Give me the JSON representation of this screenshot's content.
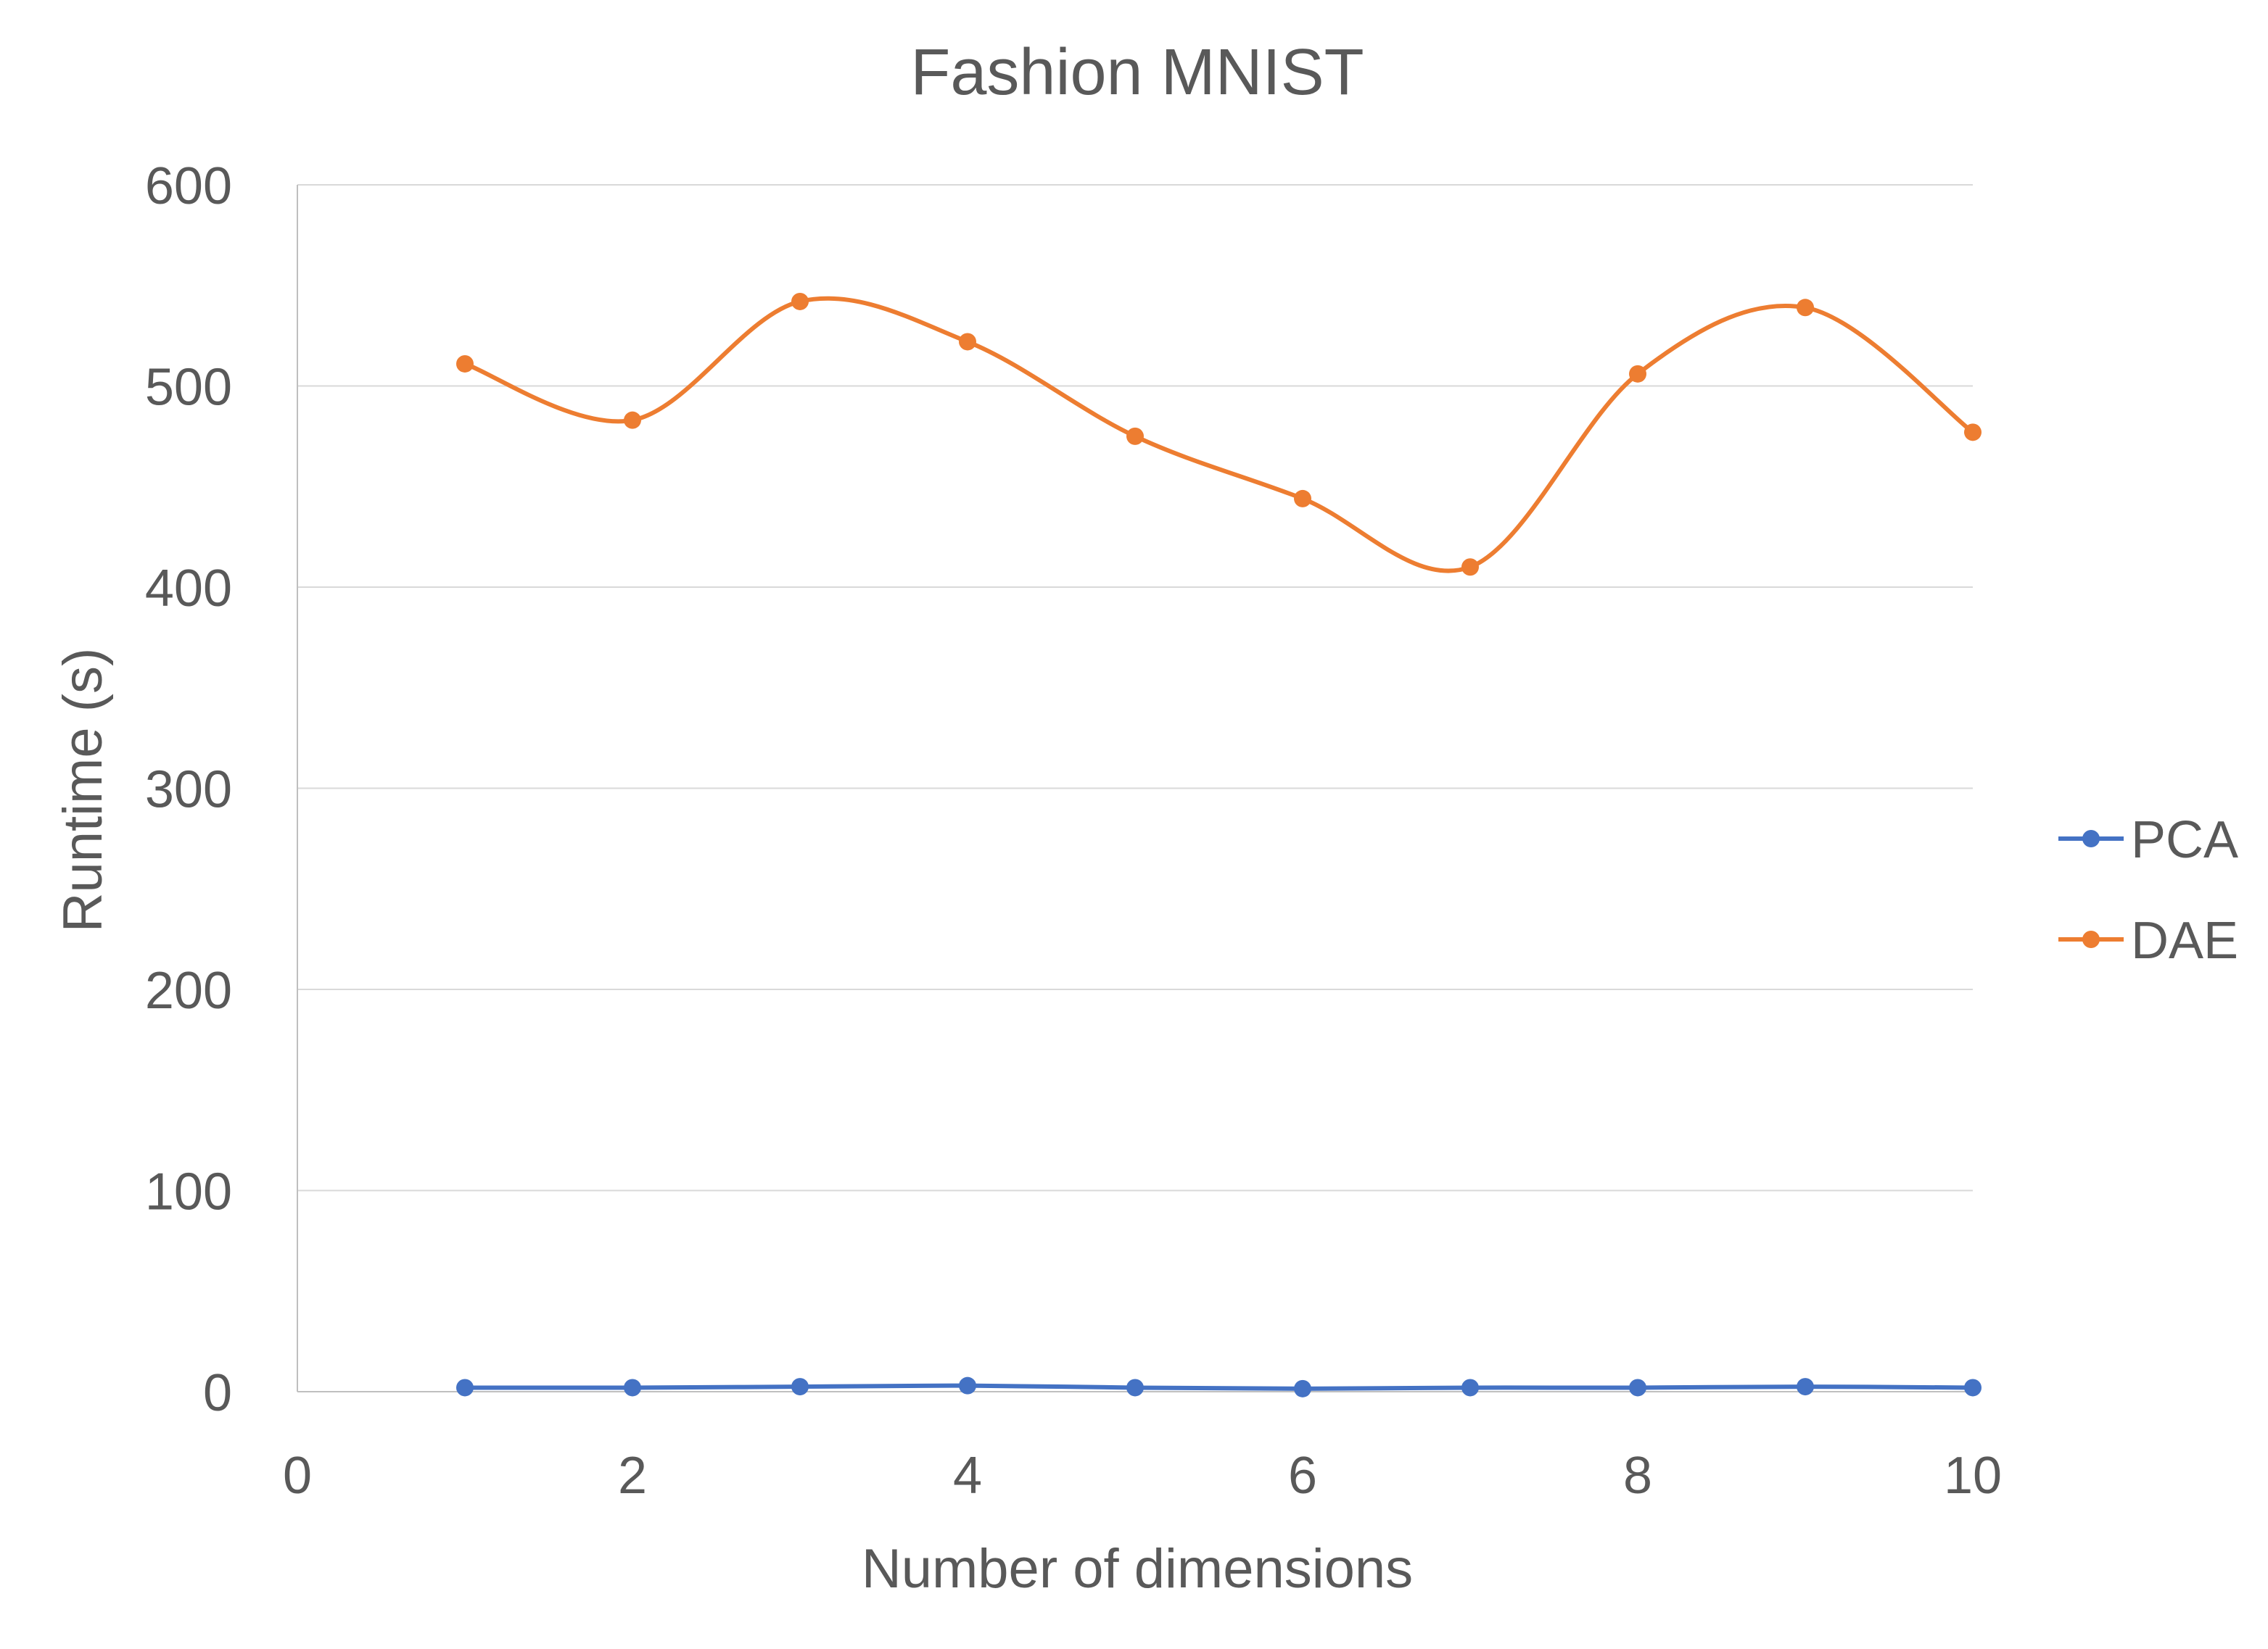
{
  "chart_data": {
    "type": "line",
    "title": "Fashion MNIST",
    "xlabel": "Number of dimensions",
    "ylabel": "Runtime (s)",
    "xlim": [
      0,
      10
    ],
    "ylim": [
      0,
      600
    ],
    "x_ticks": [
      "0",
      "2",
      "4",
      "6",
      "8",
      "10"
    ],
    "y_ticks": [
      "0",
      "100",
      "200",
      "300",
      "400",
      "500",
      "600"
    ],
    "grid": true,
    "legend": "right",
    "smooth": true,
    "x": [
      1,
      2,
      3,
      4,
      5,
      6,
      7,
      8,
      9,
      10
    ],
    "series": [
      {
        "name": "PCA",
        "color": "#4472C4",
        "values": [
          2,
          2,
          2.5,
          3,
          2,
          1.5,
          2,
          2,
          2.5,
          2
        ]
      },
      {
        "name": "DAE",
        "color": "#ED7D31",
        "values": [
          511,
          483,
          542,
          522,
          475,
          444,
          410,
          506,
          539,
          477
        ]
      }
    ]
  }
}
